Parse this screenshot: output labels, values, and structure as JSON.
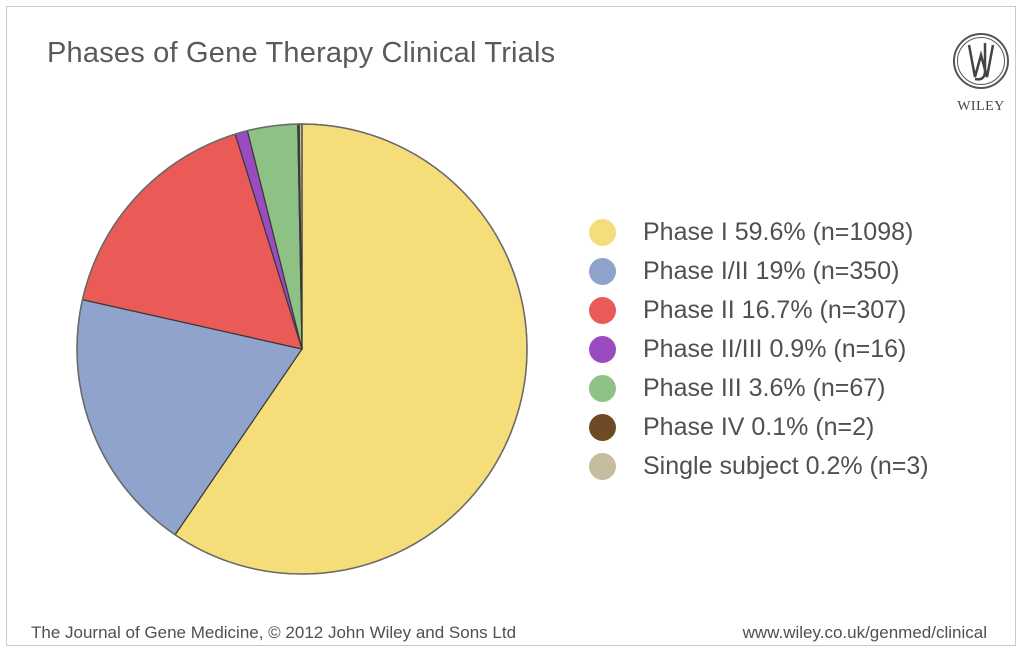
{
  "footer": {
    "left": "The Journal of Gene Medicine, © 2012 John Wiley and Sons Ltd",
    "right": "www.wiley.co.uk/genmed/clinical"
  },
  "logo": {
    "text": "WILEY",
    "icon": "wiley-jw-seal-icon"
  },
  "chart_data": {
    "type": "pie",
    "title": "Phases of Gene Therapy Clinical Trials",
    "legend_position": "right",
    "slices": [
      {
        "label": "Phase I  59.6% (n=1098)",
        "name": "Phase I",
        "percent": 59.6,
        "n": 1098,
        "color": "#f5dd7a"
      },
      {
        "label": "Phase I/II  19% (n=350)",
        "name": "Phase I/II",
        "percent": 19,
        "n": 350,
        "color": "#8fa3cc"
      },
      {
        "label": "Phase II  16.7% (n=307)",
        "name": "Phase II",
        "percent": 16.7,
        "n": 307,
        "color": "#ea5b57"
      },
      {
        "label": "Phase II/III  0.9% (n=16)",
        "name": "Phase II/III",
        "percent": 0.9,
        "n": 16,
        "color": "#9a4bbf"
      },
      {
        "label": "Phase III  3.6% (n=67)",
        "name": "Phase III",
        "percent": 3.6,
        "n": 67,
        "color": "#8dc284"
      },
      {
        "label": "Phase IV  0.1% (n=2)",
        "name": "Phase IV",
        "percent": 0.1,
        "n": 2,
        "color": "#6e4a26"
      },
      {
        "label": "Single subject  0.2% (n=3)",
        "name": "Single subject",
        "percent": 0.2,
        "n": 3,
        "color": "#c8bca0"
      }
    ]
  }
}
